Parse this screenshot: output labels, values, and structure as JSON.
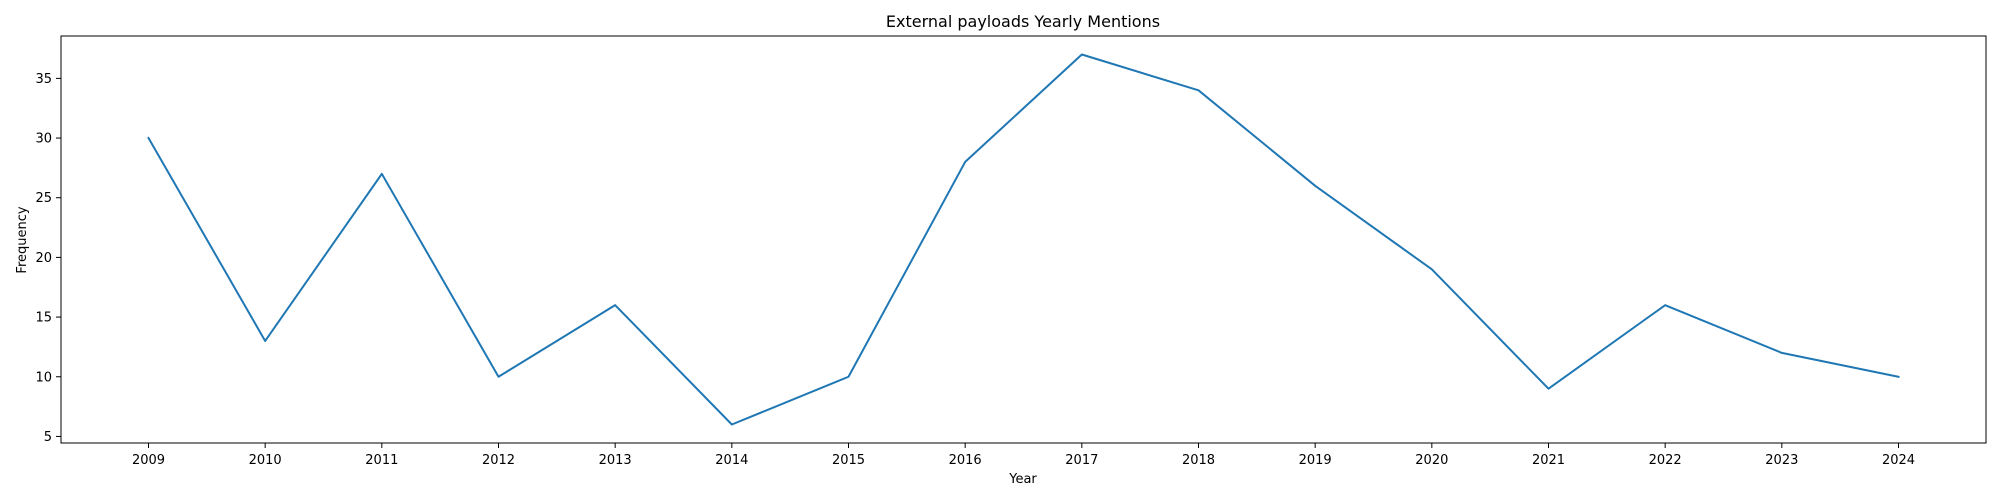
{
  "chart_data": {
    "type": "line",
    "title": "External payloads Yearly Mentions",
    "xlabel": "Year",
    "ylabel": "Frequency",
    "x": [
      2009,
      2010,
      2011,
      2012,
      2013,
      2014,
      2015,
      2016,
      2017,
      2018,
      2019,
      2020,
      2021,
      2022,
      2023,
      2024
    ],
    "series": [
      {
        "values": [
          30,
          13,
          27,
          10,
          16,
          6,
          10,
          28,
          37,
          34,
          26,
          19,
          9,
          16,
          12,
          10
        ]
      }
    ],
    "xlim": [
      2008.25,
      2024.75
    ],
    "ylim": [
      4.45,
      38.55
    ],
    "yticks": [
      5,
      10,
      15,
      20,
      25,
      30,
      35
    ],
    "line_color": "#1f77b4",
    "grid": false,
    "legend": false
  }
}
